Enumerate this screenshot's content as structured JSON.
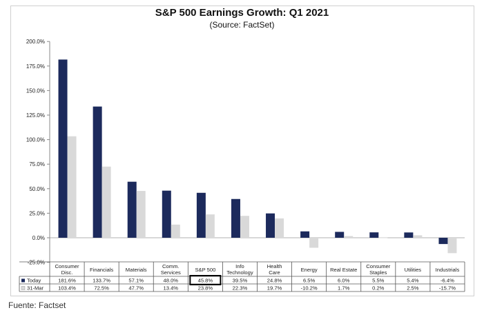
{
  "chart_data": {
    "type": "bar",
    "title": "S&P 500 Earnings Growth: Q1 2021",
    "subtitle": "(Source: FactSet)",
    "categories": [
      "Consumer Disc.",
      "Financials",
      "Materials",
      "Comm. Services",
      "S&P 500",
      "Info Technology",
      "Health Care",
      "Energy",
      "Real Estate",
      "Consumer Staples",
      "Utilities",
      "Industrials"
    ],
    "category_lines": [
      [
        "Consumer",
        "Disc."
      ],
      [
        "Financials"
      ],
      [
        "Materials"
      ],
      [
        "Comm.",
        "Services"
      ],
      [
        "S&P 500"
      ],
      [
        "Info",
        "Technology"
      ],
      [
        "Health",
        "Care"
      ],
      [
        "Energy"
      ],
      [
        "Real Estate"
      ],
      [
        "Consumer",
        "Staples"
      ],
      [
        "Utilities"
      ],
      [
        "Industrials"
      ]
    ],
    "series": [
      {
        "name": "Today",
        "color": "#1c2a5c",
        "values": [
          181.6,
          133.7,
          57.1,
          48.0,
          45.8,
          39.5,
          24.8,
          6.5,
          6.0,
          5.5,
          5.4,
          -6.4
        ],
        "labels": [
          "181.6%",
          "133.7%",
          "57.1%",
          "48.0%",
          "45.8%",
          "39.5%",
          "24.8%",
          "6.5%",
          "6.0%",
          "5.5%",
          "5.4%",
          "-6.4%"
        ]
      },
      {
        "name": "31-Mar",
        "color": "#d9d9d9",
        "values": [
          103.4,
          72.5,
          47.7,
          13.4,
          23.8,
          22.3,
          19.7,
          -10.2,
          1.7,
          0.2,
          2.5,
          -15.7
        ],
        "labels": [
          "103.4%",
          "72.5%",
          "47.7%",
          "13.4%",
          "23.8%",
          "22.3%",
          "19.7%",
          "-10.2%",
          "1.7%",
          "0.2%",
          "2.5%",
          "-15.7%"
        ]
      }
    ],
    "ylim": [
      -25,
      200
    ],
    "yticks": [
      "-25.0%",
      "0.0%",
      "25.0%",
      "50.0%",
      "75.0%",
      "100.0%",
      "125.0%",
      "150.0%",
      "175.0%",
      "200.0%"
    ],
    "highlighted_category": "S&P 500",
    "grid": false,
    "legend": "data-table"
  },
  "footer": {
    "source": "Fuente: Factset"
  }
}
